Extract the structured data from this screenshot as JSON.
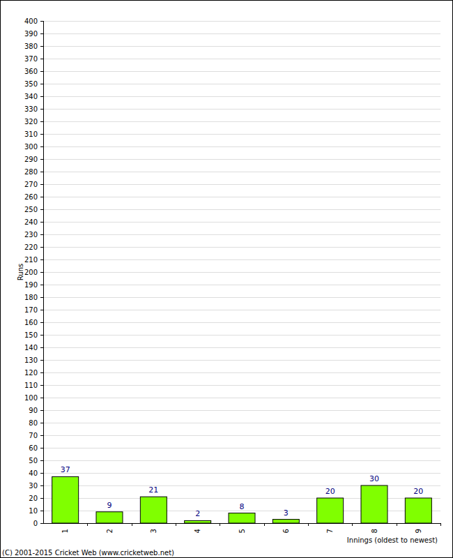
{
  "chart_data": {
    "type": "bar",
    "y_label": "Runs",
    "x_label": "Innings (oldest to newest)",
    "annotations": [
      "(C) 2001-2015 Cricket Web (www.cricketweb.net)"
    ],
    "categories": [
      "1",
      "2",
      "3",
      "4",
      "5",
      "6",
      "7",
      "8",
      "9"
    ],
    "values": [
      37,
      9,
      21,
      2,
      8,
      3,
      20,
      30,
      20
    ],
    "color": "#80ff00",
    "ylim": [
      0,
      400
    ],
    "yticks": [
      0,
      10,
      20,
      30,
      40,
      50,
      60,
      70,
      80,
      90,
      100,
      110,
      120,
      130,
      140,
      150,
      160,
      170,
      180,
      190,
      200,
      210,
      220,
      230,
      240,
      250,
      260,
      270,
      280,
      290,
      300,
      310,
      320,
      330,
      340,
      350,
      360,
      370,
      380,
      390,
      400
    ],
    "grid": true,
    "data_labels": true
  }
}
